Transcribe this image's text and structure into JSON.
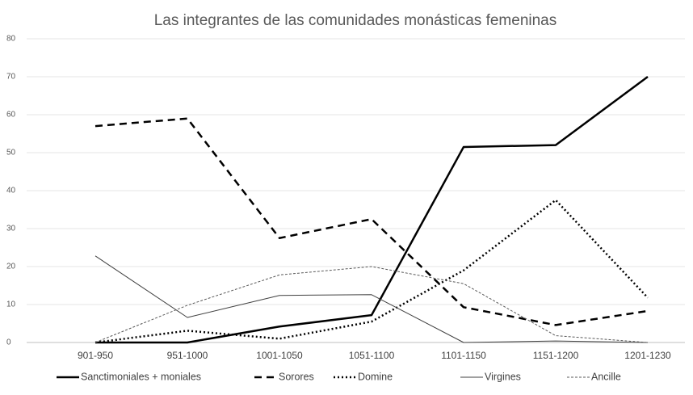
{
  "chart_data": {
    "type": "line",
    "title": "Las integrantes de las comunidades monásticas femeninas",
    "categories": [
      "901-950",
      "951-1000",
      "1001-1050",
      "1051-1100",
      "1101-1150",
      "1151-1200",
      "1201-1230"
    ],
    "series": [
      {
        "name": "Sanctimoniales + moniales",
        "color": "#000000",
        "linestyle": "solid",
        "linewidth": 2.5,
        "values": [
          0,
          0,
          4.2,
          7.2,
          51.5,
          52,
          70
        ]
      },
      {
        "name": "Sorores",
        "color": "#000000",
        "linestyle": "dashed",
        "linewidth": 2.5,
        "values": [
          57,
          59,
          27.5,
          32.5,
          9.3,
          4.6,
          8.3
        ]
      },
      {
        "name": "Domine",
        "color": "#000000",
        "linestyle": "dotted",
        "linewidth": 2.5,
        "values": [
          0,
          3.1,
          1,
          5.5,
          19,
          37.5,
          11.8
        ]
      },
      {
        "name": "Virgines",
        "color": "#404040",
        "linestyle": "solid",
        "linewidth": 1,
        "values": [
          22.8,
          6.6,
          12.4,
          12.6,
          0,
          0.4,
          0
        ]
      },
      {
        "name": "Ancille",
        "color": "#595959",
        "linestyle": "dashed",
        "linewidth": 1,
        "values": [
          0,
          9.8,
          17.8,
          20,
          15.5,
          1.8,
          0
        ]
      }
    ],
    "ylim": [
      0,
      80
    ],
    "yticks": [
      0,
      10,
      20,
      30,
      40,
      50,
      60,
      70,
      80
    ],
    "grid": true,
    "legend": "bottom"
  }
}
